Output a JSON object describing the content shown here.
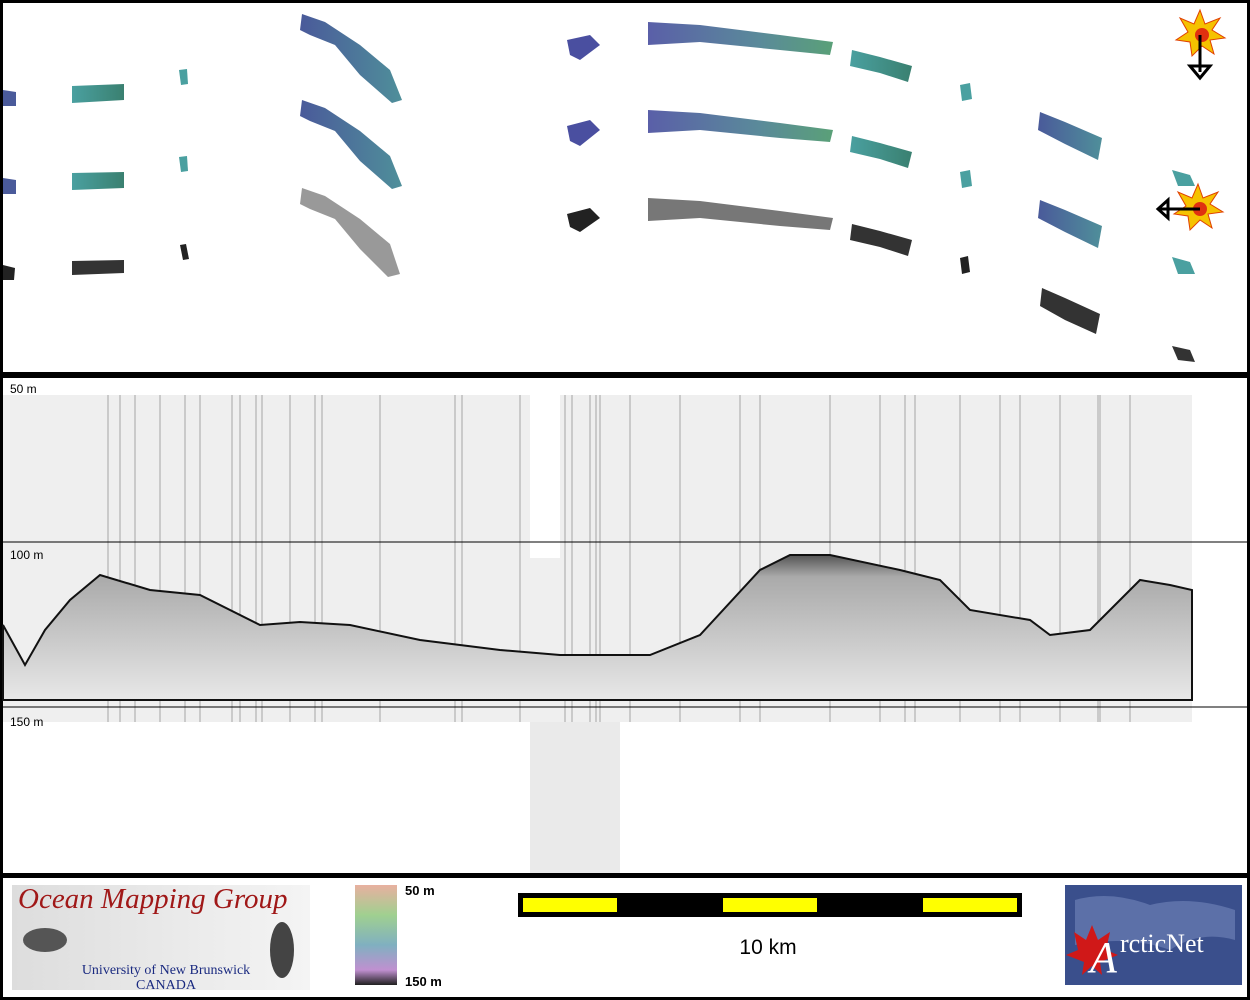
{
  "profile": {
    "depth_labels": [
      "50 m",
      "100 m",
      "150 m"
    ]
  },
  "footer": {
    "logo": {
      "title": "Ocean Mapping Group",
      "line1": "University of New Brunswick",
      "line2": "CANADA"
    },
    "colorbar": {
      "top": "50 m",
      "bottom": "150 m"
    },
    "scale_bar": {
      "label": "10 km"
    },
    "arcticnet": {
      "initial": "A",
      "rest": "rcticNet"
    }
  }
}
